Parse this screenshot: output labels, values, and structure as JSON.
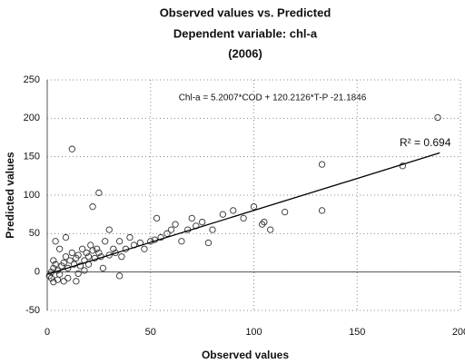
{
  "chart_data": {
    "type": "scatter",
    "title": [
      "Observed values vs. Predicted",
      "Dependent variable: chl-a",
      "(2006)"
    ],
    "x_label": "Observed values",
    "y_label": "Predicted values",
    "annotations": [
      "Chl-a = 5.2007*COD + 120.2126*T-P -21.1846",
      "R² = 0.694"
    ],
    "xlim": [
      0,
      200
    ],
    "xticks": [
      0,
      50,
      100,
      150,
      200
    ],
    "ylim": [
      -50,
      250
    ],
    "yticks": [
      -50,
      0,
      50,
      100,
      150,
      200,
      250
    ],
    "grid": true,
    "color": "#333333",
    "x": [
      1,
      2,
      3,
      2,
      4,
      5,
      6,
      3,
      7,
      8,
      5,
      9,
      10,
      11,
      12,
      6,
      4,
      13,
      14,
      15,
      16,
      17,
      18,
      19,
      20,
      21,
      22,
      23,
      24,
      25,
      26,
      28,
      30,
      12,
      25,
      22,
      9,
      10,
      15,
      18,
      20,
      32,
      33,
      35,
      36,
      38,
      40,
      42,
      45,
      47,
      50,
      52,
      55,
      53,
      58,
      60,
      62,
      65,
      68,
      70,
      72,
      75,
      78,
      80,
      85,
      90,
      95,
      100,
      104,
      105,
      108,
      115,
      133,
      133,
      172,
      189,
      30,
      35,
      27,
      14,
      8,
      3
    ],
    "values": [
      -5,
      0,
      5,
      -8,
      10,
      2,
      -3,
      15,
      8,
      12,
      -10,
      20,
      5,
      15,
      25,
      30,
      40,
      10,
      18,
      22,
      8,
      30,
      15,
      25,
      20,
      35,
      28,
      18,
      30,
      25,
      20,
      40,
      22,
      160,
      103,
      85,
      45,
      -8,
      -2,
      2,
      10,
      30,
      25,
      40,
      20,
      30,
      45,
      35,
      38,
      30,
      40,
      42,
      45,
      70,
      50,
      55,
      62,
      40,
      55,
      70,
      60,
      65,
      38,
      55,
      75,
      80,
      70,
      85,
      62,
      65,
      55,
      78,
      140,
      80,
      138,
      201,
      55,
      -5,
      5,
      -12,
      -12,
      -13
    ],
    "trendline": {
      "x": [
        0,
        190
      ],
      "y": [
        -3,
        155
      ]
    }
  }
}
